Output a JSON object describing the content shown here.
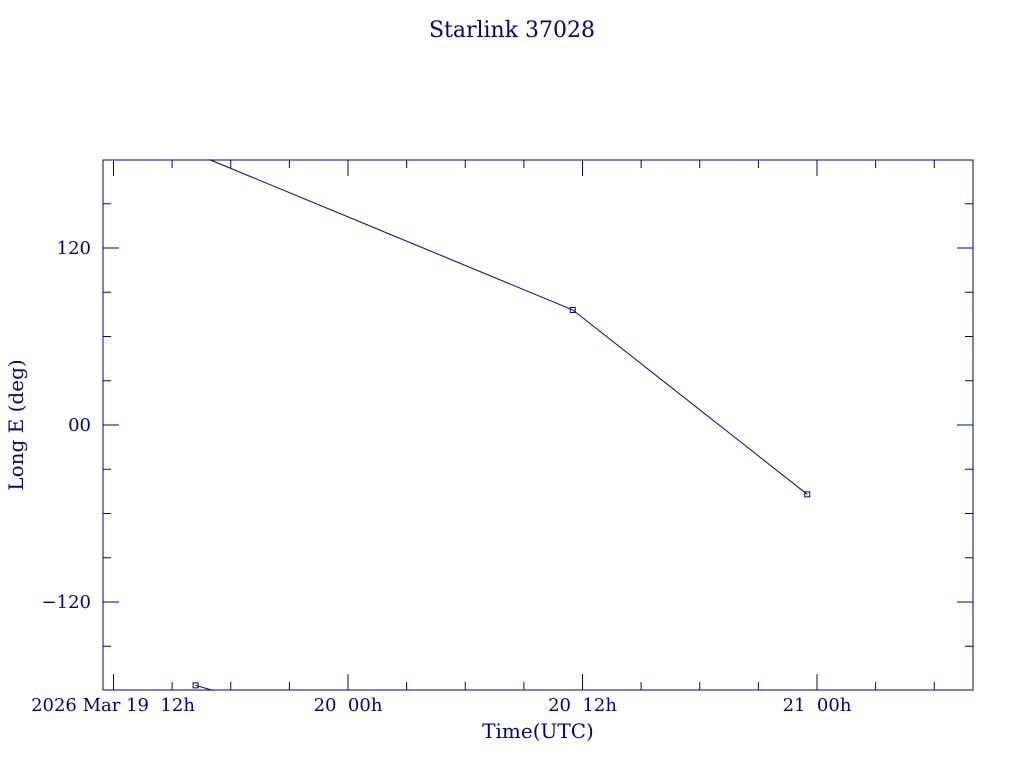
{
  "chart_data": {
    "type": "line",
    "title": "Starlink 37028",
    "xlabel": "Time(UTC)",
    "ylabel": "Long E (deg)",
    "color": "#00008b",
    "x_ticks": [
      {
        "label": "2026 Mar 19  12h",
        "hours": 12
      },
      {
        "label": "20  00h",
        "hours": 24
      },
      {
        "label": "20  12h",
        "hours": 36
      },
      {
        "label": "21  00h",
        "hours": 48
      }
    ],
    "y_ticks": [
      {
        "label": "120",
        "value": 120
      },
      {
        "label": "00",
        "value": 0
      },
      {
        "label": "−120",
        "value": -120
      }
    ],
    "ylim": [
      -180,
      180
    ],
    "segments": [
      {
        "points": [
          {
            "hours": 16.9,
            "lon": 180.0
          },
          {
            "hours": 35.5,
            "lon": 78.0
          },
          {
            "hours": 47.5,
            "lon": -47.0
          }
        ],
        "markers": [
          1,
          2
        ]
      },
      {
        "points": [
          {
            "hours": 16.2,
            "lon": -176.5
          },
          {
            "hours": 17.1,
            "lon": -180.0
          }
        ],
        "markers": [
          0
        ]
      }
    ]
  }
}
